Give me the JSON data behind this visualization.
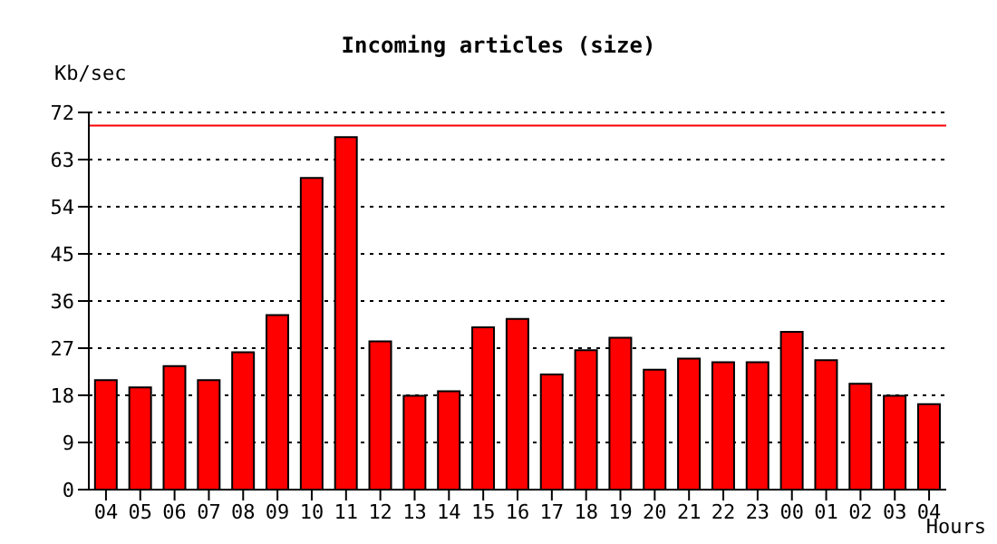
{
  "chart_data": {
    "type": "bar",
    "title": "Incoming articles (size)",
    "ylabel": "Kb/sec",
    "xlabel": "Hours",
    "categories": [
      "04",
      "05",
      "06",
      "07",
      "08",
      "09",
      "10",
      "11",
      "12",
      "13",
      "14",
      "15",
      "16",
      "17",
      "18",
      "19",
      "20",
      "21",
      "22",
      "23",
      "00",
      "01",
      "02",
      "03",
      "04"
    ],
    "series": [
      {
        "color": "#ff0000",
        "values": [
          20.9,
          19.5,
          23.6,
          20.9,
          26.2,
          33.3,
          59.5,
          67.3,
          28.3,
          17.9,
          18.8,
          31.0,
          32.6,
          22.0,
          26.6,
          29.0,
          22.9,
          25.0,
          24.3,
          24.3,
          30.1,
          24.7,
          20.2,
          17.9,
          16.3
        ]
      }
    ],
    "ylim": [
      0,
      72
    ],
    "yticks": [
      0,
      9,
      18,
      27,
      36,
      45,
      54,
      63,
      72
    ],
    "grid": "y",
    "ref_lines": [
      {
        "axis": "y",
        "value": 69.5,
        "color": "#ff0000"
      }
    ]
  }
}
